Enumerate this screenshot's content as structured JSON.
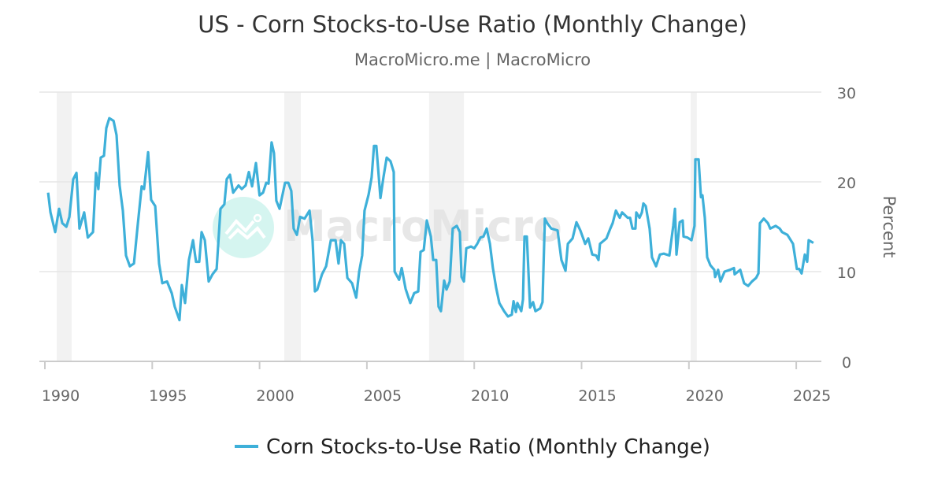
{
  "chart_data": {
    "type": "line",
    "title": "US - Corn Stocks-to-Use Ratio (Monthly Change)",
    "subtitle": "MacroMicro.me | MacroMicro",
    "ylabel": "Percent",
    "xlabel": "",
    "xlim": [
      1989.8,
      2026.2
    ],
    "ylim": [
      0,
      30
    ],
    "x_ticks": [
      "1990",
      "1995",
      "2000",
      "2005",
      "2010",
      "2015",
      "2020",
      "2025"
    ],
    "y_ticks": [
      "0",
      "10",
      "20",
      "30"
    ],
    "grid": "horizontal",
    "y_axis_side": "right",
    "legend_placement": "bottom",
    "watermark": "MacroMicro",
    "colors": {
      "series": "#3eb0d9",
      "recession": "#f2f2f2",
      "grid": "#e6e6e6",
      "logo": "#d5f5f0"
    },
    "shaded_periods": [
      [
        1990.55,
        1991.25
      ],
      [
        2001.15,
        2001.92
      ],
      [
        2007.9,
        2009.52
      ],
      [
        2020.08,
        2020.37
      ]
    ],
    "series": [
      {
        "name": "Corn Stocks-to-Use Ratio (Monthly Change)",
        "points": [
          [
            1990.15,
            18.8
          ],
          [
            1990.26,
            16.6
          ],
          [
            1990.48,
            14.4
          ],
          [
            1990.66,
            17.0
          ],
          [
            1990.81,
            15.4
          ],
          [
            1991.0,
            15.0
          ],
          [
            1991.14,
            16.1
          ],
          [
            1991.32,
            20.3
          ],
          [
            1991.47,
            21.0
          ],
          [
            1991.61,
            14.8
          ],
          [
            1991.83,
            16.6
          ],
          [
            1992.0,
            13.8
          ],
          [
            1992.24,
            14.4
          ],
          [
            1992.38,
            21.0
          ],
          [
            1992.49,
            19.2
          ],
          [
            1992.6,
            22.7
          ],
          [
            1992.75,
            22.9
          ],
          [
            1992.86,
            26.0
          ],
          [
            1993.0,
            27.1
          ],
          [
            1993.2,
            26.8
          ],
          [
            1993.34,
            25.2
          ],
          [
            1993.48,
            19.6
          ],
          [
            1993.63,
            16.8
          ],
          [
            1993.78,
            11.8
          ],
          [
            1993.96,
            10.6
          ],
          [
            1994.15,
            10.9
          ],
          [
            1994.33,
            15.3
          ],
          [
            1994.51,
            19.5
          ],
          [
            1994.62,
            19.2
          ],
          [
            1994.81,
            23.3
          ],
          [
            1994.95,
            18.0
          ],
          [
            1995.14,
            17.3
          ],
          [
            1995.32,
            10.9
          ],
          [
            1995.47,
            8.7
          ],
          [
            1995.69,
            8.9
          ],
          [
            1995.91,
            7.6
          ],
          [
            1996.05,
            6.1
          ],
          [
            1996.27,
            4.6
          ],
          [
            1996.38,
            8.5
          ],
          [
            1996.53,
            6.5
          ],
          [
            1996.71,
            11.3
          ],
          [
            1996.9,
            13.5
          ],
          [
            1997.04,
            11.1
          ],
          [
            1997.19,
            11.1
          ],
          [
            1997.3,
            14.4
          ],
          [
            1997.45,
            13.5
          ],
          [
            1997.63,
            8.9
          ],
          [
            1997.81,
            9.7
          ],
          [
            1998.0,
            10.3
          ],
          [
            1998.18,
            17.0
          ],
          [
            1998.36,
            17.5
          ],
          [
            1998.47,
            20.3
          ],
          [
            1998.62,
            20.8
          ],
          [
            1998.77,
            18.8
          ],
          [
            1999.02,
            19.6
          ],
          [
            1999.17,
            19.2
          ],
          [
            1999.35,
            19.6
          ],
          [
            1999.5,
            21.1
          ],
          [
            1999.65,
            19.5
          ],
          [
            1999.83,
            22.1
          ],
          [
            2000.0,
            18.5
          ],
          [
            2000.16,
            18.8
          ],
          [
            2000.31,
            19.9
          ],
          [
            2000.42,
            19.8
          ],
          [
            2000.56,
            24.4
          ],
          [
            2000.67,
            23.2
          ],
          [
            2000.78,
            17.9
          ],
          [
            2000.93,
            17.0
          ],
          [
            2001.19,
            19.9
          ],
          [
            2001.34,
            19.9
          ],
          [
            2001.48,
            19.0
          ],
          [
            2001.59,
            14.8
          ],
          [
            2001.74,
            14.1
          ],
          [
            2001.89,
            16.1
          ],
          [
            2002.1,
            15.9
          ],
          [
            2002.33,
            16.8
          ],
          [
            2002.47,
            13.5
          ],
          [
            2002.58,
            7.8
          ],
          [
            2002.69,
            8.0
          ],
          [
            2002.91,
            9.7
          ],
          [
            2003.1,
            10.6
          ],
          [
            2003.32,
            13.5
          ],
          [
            2003.54,
            13.5
          ],
          [
            2003.68,
            10.9
          ],
          [
            2003.79,
            13.5
          ],
          [
            2003.94,
            13.1
          ],
          [
            2004.09,
            9.3
          ],
          [
            2004.31,
            8.7
          ],
          [
            2004.5,
            7.1
          ],
          [
            2004.64,
            10.0
          ],
          [
            2004.78,
            11.8
          ],
          [
            2004.89,
            16.8
          ],
          [
            2005.08,
            18.6
          ],
          [
            2005.22,
            20.5
          ],
          [
            2005.33,
            24.0
          ],
          [
            2005.44,
            24.0
          ],
          [
            2005.63,
            18.2
          ],
          [
            2005.77,
            20.5
          ],
          [
            2005.92,
            22.7
          ],
          [
            2006.1,
            22.3
          ],
          [
            2006.25,
            21.1
          ],
          [
            2006.29,
            10.0
          ],
          [
            2006.5,
            9.1
          ],
          [
            2006.62,
            10.4
          ],
          [
            2006.8,
            8.1
          ],
          [
            2007.02,
            6.5
          ],
          [
            2007.2,
            7.6
          ],
          [
            2007.39,
            7.8
          ],
          [
            2007.5,
            12.2
          ],
          [
            2007.65,
            12.4
          ],
          [
            2007.79,
            15.7
          ],
          [
            2007.98,
            13.9
          ],
          [
            2008.09,
            11.3
          ],
          [
            2008.23,
            11.3
          ],
          [
            2008.34,
            6.1
          ],
          [
            2008.45,
            5.6
          ],
          [
            2008.6,
            9.0
          ],
          [
            2008.71,
            8.0
          ],
          [
            2008.86,
            8.9
          ],
          [
            2009.0,
            14.8
          ],
          [
            2009.19,
            15.1
          ],
          [
            2009.33,
            14.4
          ],
          [
            2009.41,
            9.4
          ],
          [
            2009.52,
            8.9
          ],
          [
            2009.63,
            12.6
          ],
          [
            2009.85,
            12.8
          ],
          [
            2010.0,
            12.6
          ],
          [
            2010.14,
            13.1
          ],
          [
            2010.29,
            13.8
          ],
          [
            2010.43,
            13.9
          ],
          [
            2010.58,
            14.8
          ],
          [
            2010.73,
            13.1
          ],
          [
            2010.87,
            10.4
          ],
          [
            2011.02,
            8.2
          ],
          [
            2011.17,
            6.5
          ],
          [
            2011.39,
            5.6
          ],
          [
            2011.57,
            5.0
          ],
          [
            2011.75,
            5.2
          ],
          [
            2011.83,
            6.7
          ],
          [
            2011.94,
            5.5
          ],
          [
            2012.01,
            6.5
          ],
          [
            2012.19,
            5.6
          ],
          [
            2012.27,
            6.9
          ],
          [
            2012.34,
            13.9
          ],
          [
            2012.45,
            13.9
          ],
          [
            2012.6,
            6.0
          ],
          [
            2012.74,
            6.6
          ],
          [
            2012.85,
            5.6
          ],
          [
            2013.07,
            5.9
          ],
          [
            2013.18,
            6.6
          ],
          [
            2013.29,
            15.9
          ],
          [
            2013.4,
            15.4
          ],
          [
            2013.59,
            14.8
          ],
          [
            2013.88,
            14.6
          ],
          [
            2014.06,
            11.3
          ],
          [
            2014.25,
            10.1
          ],
          [
            2014.36,
            13.1
          ],
          [
            2014.58,
            13.7
          ],
          [
            2014.76,
            15.5
          ],
          [
            2014.94,
            14.6
          ],
          [
            2015.17,
            13.1
          ],
          [
            2015.31,
            13.7
          ],
          [
            2015.5,
            11.9
          ],
          [
            2015.68,
            11.8
          ],
          [
            2015.79,
            11.3
          ],
          [
            2015.86,
            13.1
          ],
          [
            2016.16,
            13.7
          ],
          [
            2016.34,
            14.8
          ],
          [
            2016.45,
            15.4
          ],
          [
            2016.6,
            16.8
          ],
          [
            2016.78,
            16.0
          ],
          [
            2016.89,
            16.6
          ],
          [
            2017.15,
            16.0
          ],
          [
            2017.26,
            16.0
          ],
          [
            2017.37,
            14.8
          ],
          [
            2017.51,
            14.8
          ],
          [
            2017.55,
            16.6
          ],
          [
            2017.7,
            16.0
          ],
          [
            2017.81,
            16.6
          ],
          [
            2017.88,
            17.6
          ],
          [
            2017.99,
            17.3
          ],
          [
            2018.17,
            14.8
          ],
          [
            2018.28,
            11.6
          ],
          [
            2018.47,
            10.6
          ],
          [
            2018.65,
            11.9
          ],
          [
            2018.83,
            12.0
          ],
          [
            2019.09,
            11.8
          ],
          [
            2019.27,
            15.1
          ],
          [
            2019.35,
            17.0
          ],
          [
            2019.42,
            11.9
          ],
          [
            2019.57,
            15.5
          ],
          [
            2019.71,
            15.7
          ],
          [
            2019.75,
            13.9
          ],
          [
            2019.93,
            13.8
          ],
          [
            2020.12,
            13.5
          ],
          [
            2020.26,
            15.1
          ],
          [
            2020.3,
            22.5
          ],
          [
            2020.45,
            22.5
          ],
          [
            2020.56,
            18.3
          ],
          [
            2020.63,
            18.5
          ],
          [
            2020.74,
            16.0
          ],
          [
            2020.85,
            11.6
          ],
          [
            2021.0,
            10.7
          ],
          [
            2021.18,
            10.2
          ],
          [
            2021.22,
            9.4
          ],
          [
            2021.36,
            10.2
          ],
          [
            2021.47,
            8.9
          ],
          [
            2021.66,
            10.0
          ],
          [
            2021.92,
            10.2
          ],
          [
            2022.1,
            10.4
          ],
          [
            2022.13,
            9.7
          ],
          [
            2022.39,
            10.2
          ],
          [
            2022.57,
            8.7
          ],
          [
            2022.76,
            8.4
          ],
          [
            2022.94,
            8.9
          ],
          [
            2023.13,
            9.3
          ],
          [
            2023.24,
            9.8
          ],
          [
            2023.31,
            15.4
          ],
          [
            2023.49,
            15.9
          ],
          [
            2023.68,
            15.4
          ],
          [
            2023.79,
            14.8
          ],
          [
            2024.04,
            15.1
          ],
          [
            2024.23,
            14.8
          ],
          [
            2024.34,
            14.4
          ],
          [
            2024.59,
            14.1
          ],
          [
            2024.85,
            13.1
          ],
          [
            2025.03,
            10.3
          ],
          [
            2025.14,
            10.3
          ],
          [
            2025.25,
            9.8
          ],
          [
            2025.4,
            11.9
          ],
          [
            2025.51,
            11.1
          ],
          [
            2025.58,
            13.5
          ],
          [
            2025.8,
            13.2
          ]
        ]
      }
    ]
  }
}
